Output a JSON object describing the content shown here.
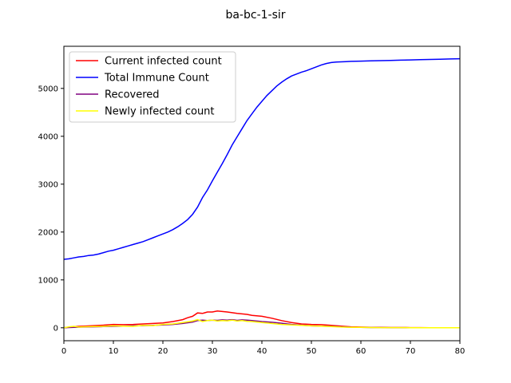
{
  "chart_data": {
    "type": "line",
    "title": "ba-bc-1-sir",
    "xlabel": "",
    "ylabel": "",
    "xlim": [
      0,
      80
    ],
    "ylim": [
      -270,
      5880
    ],
    "xticks": [
      0,
      10,
      20,
      30,
      40,
      50,
      60,
      70,
      80
    ],
    "yticks": [
      0,
      1000,
      2000,
      3000,
      4000,
      5000
    ],
    "grid": false,
    "legend_position": "top-left",
    "series": [
      {
        "name": "Current infected count",
        "color": "#ff0000",
        "x": [
          0,
          2,
          4,
          6,
          8,
          10,
          12,
          14,
          16,
          18,
          20,
          22,
          24,
          25,
          26,
          27,
          28,
          29,
          30,
          31,
          32,
          33,
          34,
          35,
          36,
          37,
          38,
          40,
          42,
          44,
          46,
          48,
          50,
          52,
          54,
          56,
          58,
          60,
          62,
          64,
          66,
          68,
          70,
          72,
          74,
          76,
          78,
          80
        ],
        "y": [
          0,
          25,
          35,
          45,
          55,
          70,
          65,
          70,
          80,
          90,
          100,
          130,
          170,
          210,
          240,
          310,
          300,
          330,
          330,
          350,
          340,
          330,
          315,
          300,
          290,
          280,
          260,
          240,
          200,
          150,
          110,
          80,
          70,
          65,
          50,
          35,
          20,
          15,
          10,
          8,
          5,
          5,
          3,
          3,
          2,
          1,
          1,
          0
        ]
      },
      {
        "name": "Total Immune Count",
        "color": "#0000ff",
        "x": [
          0,
          1,
          2,
          3,
          4,
          5,
          6,
          7,
          8,
          9,
          10,
          11,
          12,
          13,
          14,
          15,
          16,
          17,
          18,
          19,
          20,
          21,
          22,
          23,
          24,
          25,
          26,
          27,
          28,
          29,
          30,
          31,
          32,
          33,
          34,
          35,
          36,
          37,
          38,
          39,
          40,
          41,
          42,
          43,
          44,
          45,
          46,
          47,
          48,
          49,
          50,
          51,
          52,
          53,
          54,
          55,
          56,
          57,
          58,
          60,
          62,
          64,
          66,
          68,
          70,
          72,
          74,
          76,
          78,
          80
        ],
        "y": [
          1430,
          1440,
          1460,
          1480,
          1490,
          1510,
          1520,
          1540,
          1570,
          1600,
          1620,
          1650,
          1680,
          1710,
          1740,
          1770,
          1800,
          1840,
          1880,
          1920,
          1960,
          2000,
          2050,
          2110,
          2180,
          2260,
          2370,
          2520,
          2720,
          2880,
          3070,
          3250,
          3430,
          3620,
          3820,
          3990,
          4160,
          4330,
          4470,
          4610,
          4730,
          4850,
          4950,
          5050,
          5130,
          5200,
          5260,
          5300,
          5340,
          5370,
          5410,
          5450,
          5490,
          5520,
          5540,
          5550,
          5555,
          5560,
          5565,
          5570,
          5575,
          5580,
          5585,
          5590,
          5595,
          5600,
          5605,
          5610,
          5615,
          5620
        ]
      },
      {
        "name": "Recovered",
        "color": "#800080",
        "x": [
          0,
          2,
          4,
          6,
          8,
          10,
          12,
          14,
          16,
          18,
          20,
          22,
          24,
          26,
          27,
          28,
          29,
          30,
          31,
          32,
          33,
          34,
          35,
          36,
          37,
          38,
          39,
          40,
          42,
          44,
          46,
          48,
          50,
          52,
          54,
          56,
          58,
          60,
          62,
          64,
          66,
          68,
          70,
          72,
          74,
          76,
          78,
          80
        ],
        "y": [
          0,
          10,
          15,
          20,
          25,
          30,
          35,
          40,
          45,
          50,
          60,
          70,
          90,
          120,
          150,
          160,
          150,
          160,
          155,
          165,
          160,
          170,
          155,
          165,
          160,
          150,
          140,
          130,
          115,
          95,
          70,
          55,
          40,
          35,
          30,
          20,
          12,
          8,
          5,
          5,
          3,
          3,
          2,
          2,
          1,
          1,
          1,
          0
        ]
      },
      {
        "name": "Newly infected count",
        "color": "#ffff00",
        "x": [
          0,
          1,
          2,
          3,
          4,
          6,
          8,
          10,
          12,
          14,
          16,
          18,
          20,
          22,
          24,
          26,
          27,
          28,
          29,
          30,
          31,
          32,
          33,
          34,
          35,
          36,
          37,
          38,
          39,
          40,
          42,
          44,
          46,
          48,
          50,
          52,
          54,
          56,
          58,
          60,
          62,
          64,
          66,
          68,
          70,
          72,
          74,
          76,
          78,
          80
        ],
        "y": [
          0,
          20,
          30,
          15,
          20,
          25,
          30,
          40,
          35,
          30,
          50,
          45,
          70,
          80,
          110,
          140,
          170,
          130,
          150,
          160,
          140,
          150,
          145,
          160,
          140,
          150,
          135,
          130,
          120,
          110,
          90,
          70,
          60,
          50,
          40,
          35,
          25,
          15,
          10,
          8,
          5,
          4,
          3,
          3,
          2,
          2,
          1,
          1,
          1,
          0
        ]
      }
    ]
  }
}
